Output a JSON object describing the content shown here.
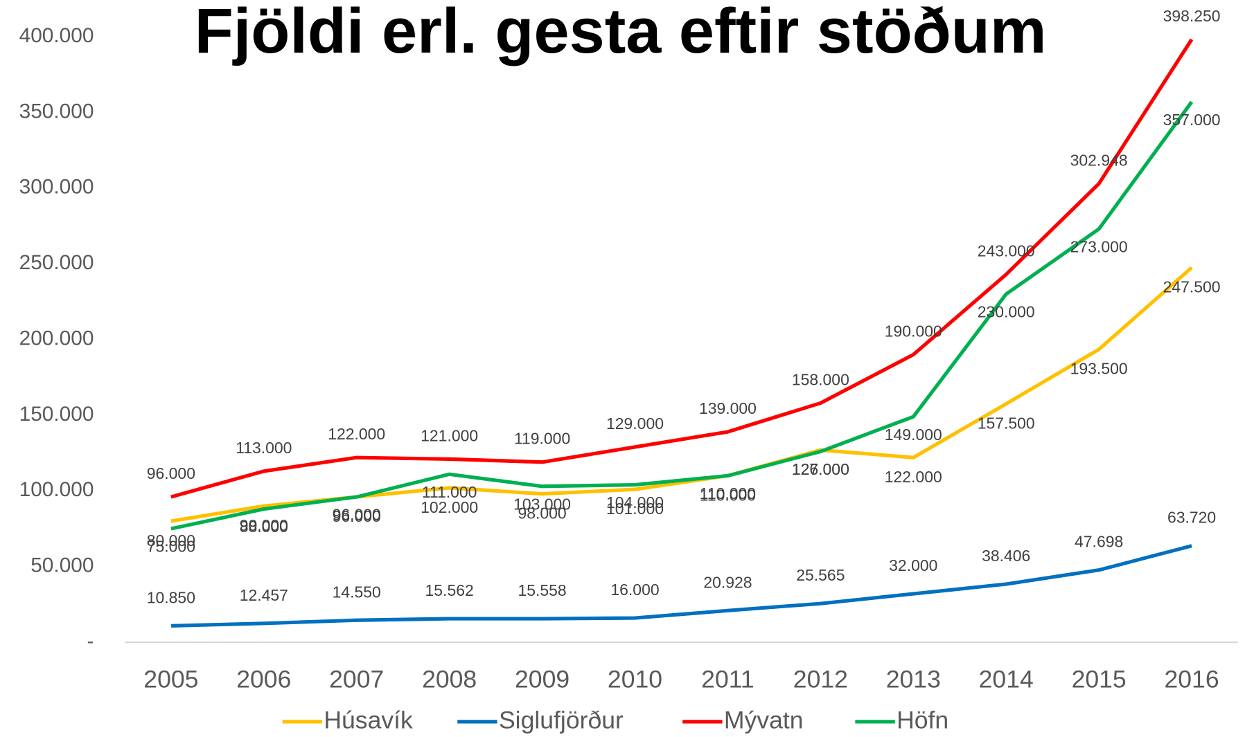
{
  "chart_data": {
    "type": "line",
    "title": "Fjöldi erl. gesta eftir stöðum",
    "categories": [
      "2005",
      "2006",
      "2007",
      "2008",
      "2009",
      "2010",
      "2011",
      "2012",
      "2013",
      "2014",
      "2015",
      "2016"
    ],
    "ylim": [
      0,
      400000
    ],
    "yticks": [
      {
        "value": 0,
        "label": "-"
      },
      {
        "value": 50000,
        "label": "50.000"
      },
      {
        "value": 100000,
        "label": "100.000"
      },
      {
        "value": 150000,
        "label": "150.000"
      },
      {
        "value": 200000,
        "label": "200.000"
      },
      {
        "value": 250000,
        "label": "250.000"
      },
      {
        "value": 300000,
        "label": "300.000"
      },
      {
        "value": 350000,
        "label": "350.000"
      },
      {
        "value": 400000,
        "label": "400.000"
      }
    ],
    "grid": false,
    "legend": "bottom",
    "series": [
      {
        "name": "Húsavík",
        "color": "#FFC000",
        "values": [
          80000,
          90000,
          96000,
          102000,
          98000,
          101000,
          110000,
          127000,
          122000,
          157500,
          193500,
          247500
        ],
        "value_labels": [
          "80.000",
          "90.000",
          "96.000",
          "102.000",
          "98.000",
          "101.000",
          "110.000",
          "127.000",
          "122.000",
          "157.500",
          "193.500",
          "247.500"
        ]
      },
      {
        "name": "Siglufjörður",
        "color": "#0070C0",
        "values": [
          10850,
          12457,
          14550,
          15562,
          15558,
          16000,
          20928,
          25565,
          32000,
          38406,
          47698,
          63720
        ],
        "value_labels": [
          "10.850",
          "12.457",
          "14.550",
          "15.562",
          "15.558",
          "16.000",
          "20.928",
          "25.565",
          "32.000",
          "38.406",
          "47.698",
          "63.720"
        ]
      },
      {
        "name": "Mývatn",
        "color": "#FF0000",
        "values": [
          96000,
          113000,
          122000,
          121000,
          119000,
          129000,
          139000,
          158000,
          190000,
          243000,
          302948,
          398250
        ],
        "value_labels": [
          "96.000",
          "113.000",
          "122.000",
          "121.000",
          "119.000",
          "129.000",
          "139.000",
          "158.000",
          "190.000",
          "243.000",
          "302.948",
          "398.250"
        ]
      },
      {
        "name": "Höfn",
        "color": "#00B050",
        "values": [
          75000,
          88000,
          96000,
          111000,
          103000,
          104000,
          110000,
          126000,
          149000,
          230000,
          273000,
          357000
        ],
        "value_labels": [
          "75.000",
          "88.000",
          "96.000",
          "111.000",
          "103.000",
          "104.000",
          "110.000",
          "126.000",
          "149.000",
          "230.000",
          "273.000",
          "357.000"
        ]
      }
    ]
  }
}
